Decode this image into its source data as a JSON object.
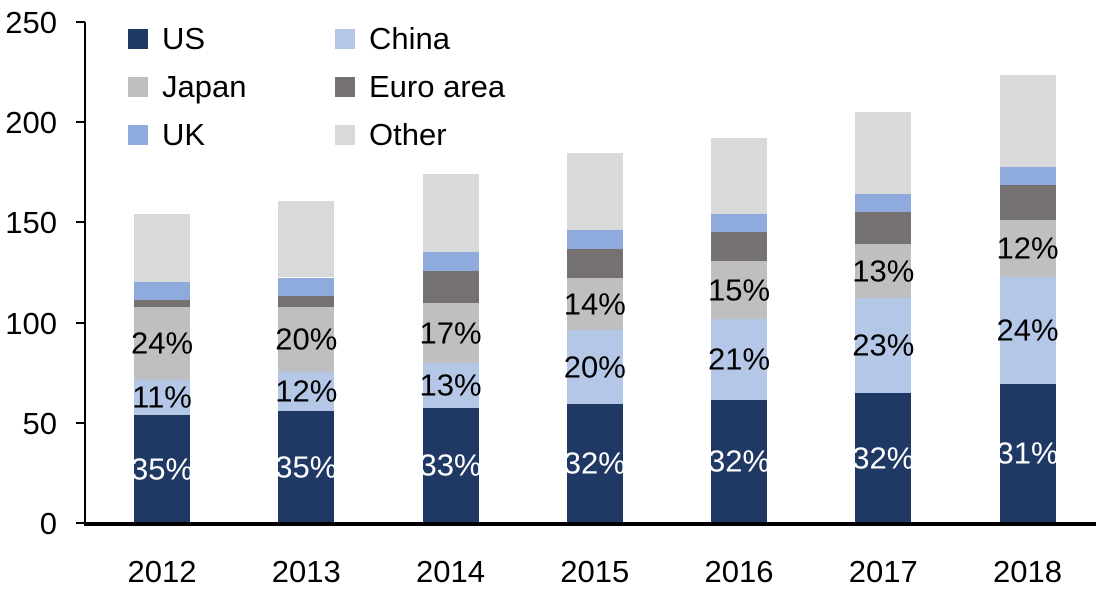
{
  "chart_data": {
    "type": "bar",
    "stacked": true,
    "title": "",
    "xlabel": "",
    "ylabel": "",
    "categories": [
      "2012",
      "2013",
      "2014",
      "2015",
      "2016",
      "2017",
      "2018"
    ],
    "series": [
      {
        "name": "US",
        "color": "#1f3864",
        "values": [
          54.0,
          56.0,
          57.5,
          59.5,
          61.5,
          65.0,
          69.5
        ],
        "labels": [
          "35%",
          "35%",
          "33%",
          "32%",
          "32%",
          "32%",
          "31%"
        ],
        "label_color": "#ffffff"
      },
      {
        "name": "China",
        "color": "#b4c7e7",
        "values": [
          17.5,
          19.5,
          22.5,
          37.0,
          40.5,
          47.5,
          53.5
        ],
        "labels": [
          "11%",
          "12%",
          "13%",
          "20%",
          "21%",
          "23%",
          "24%"
        ],
        "label_color": "#000000"
      },
      {
        "name": "Japan",
        "color": "#bfbfbf",
        "values": [
          36.5,
          32.5,
          30.0,
          26.0,
          28.5,
          26.5,
          28.0
        ],
        "labels": [
          "24%",
          "20%",
          "17%",
          "14%",
          "15%",
          "13%",
          "12%"
        ],
        "label_color": "#000000"
      },
      {
        "name": "Euro area",
        "color": "#767171",
        "values": [
          3.5,
          5.5,
          15.5,
          14.0,
          14.5,
          16.0,
          17.5
        ],
        "labels": null,
        "label_color": null
      },
      {
        "name": "UK",
        "color": "#8faadc",
        "values": [
          9.0,
          9.0,
          9.5,
          9.5,
          9.0,
          9.0,
          9.0
        ],
        "labels": null,
        "label_color": null
      },
      {
        "name": "Other",
        "color": "#d9d9d9",
        "values": [
          33.5,
          38.0,
          39.0,
          38.5,
          38.0,
          41.0,
          46.0
        ],
        "labels": null,
        "label_color": null
      }
    ],
    "totals_estimated": [
      154,
      160.5,
      174,
      184.5,
      192,
      205,
      223.5
    ],
    "ylim": [
      0,
      250
    ],
    "yticks": [
      {
        "value": 0,
        "label": "0"
      },
      {
        "value": 50,
        "label": "50"
      },
      {
        "value": 100,
        "label": "100"
      },
      {
        "value": 150,
        "label": "150"
      },
      {
        "value": 200,
        "label": "200"
      },
      {
        "value": 250,
        "label": "250"
      }
    ],
    "grid": false,
    "legend_position": "top-left",
    "legend_columns": 2,
    "axis_color": "#000000",
    "background_color": "#ffffff"
  }
}
